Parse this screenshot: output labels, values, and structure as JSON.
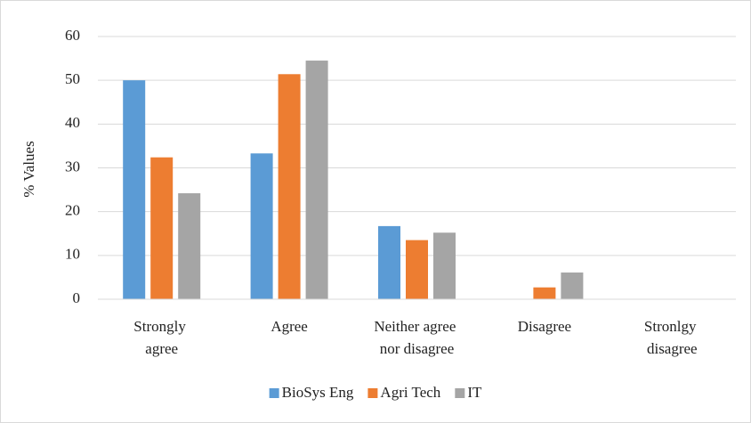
{
  "chart_data": {
    "type": "bar",
    "categories": [
      "Strongly agree",
      "Agree",
      "Neither agree nor disagree",
      "Disagree",
      "Stronlgy disagree"
    ],
    "series": [
      {
        "name": "BioSys Eng",
        "color": "#5b9bd5",
        "values": [
          50,
          33.3,
          16.7,
          0,
          0
        ]
      },
      {
        "name": "Agri Tech",
        "color": "#ed7d31",
        "values": [
          32.4,
          51.4,
          13.5,
          2.7,
          0
        ]
      },
      {
        "name": "IT",
        "color": "#a5a5a5",
        "values": [
          24.2,
          54.5,
          15.2,
          6.1,
          0
        ]
      }
    ],
    "y_label": "% Values",
    "ylim": [
      0,
      60
    ],
    "yticks": [
      0,
      10,
      20,
      30,
      40,
      50,
      60
    ],
    "grid": true,
    "legend": "bottom"
  }
}
